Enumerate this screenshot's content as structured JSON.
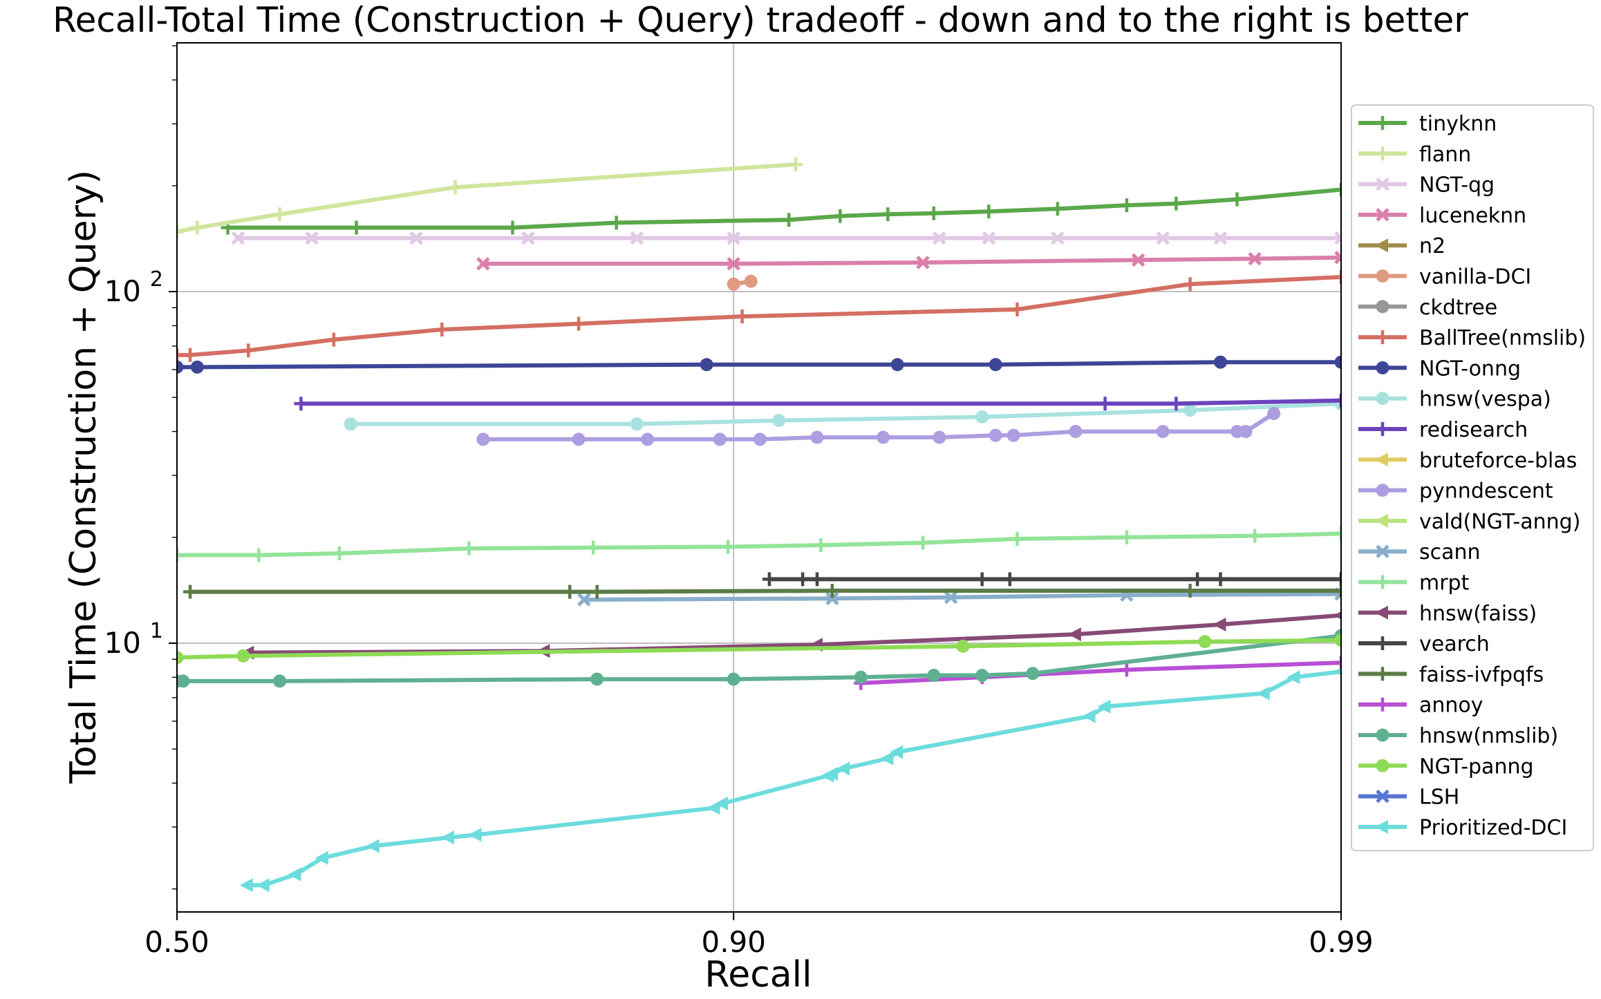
{
  "chart_data": {
    "type": "line",
    "title": "Recall-Total Time (Construction + Query) tradeoff - down and to the right is better",
    "xlabel": "Recall",
    "ylabel": "Total Time (Construction + Query)",
    "xscale": "logit",
    "yscale": "log",
    "xlim": [
      0.5,
      0.99
    ],
    "ylim": [
      1.72,
      510
    ],
    "xticks": [
      {
        "value": 0.5,
        "label": "0.50"
      },
      {
        "value": 0.9,
        "label": "0.90"
      },
      {
        "value": 0.99,
        "label": "0.99"
      }
    ],
    "yticks": [
      {
        "value": 10,
        "label": "10",
        "exp": "1"
      },
      {
        "value": 100,
        "label": "10",
        "exp": "2"
      }
    ],
    "grid": true,
    "legend_position": "right",
    "series": [
      {
        "name": "tinyknn",
        "color": "#5ba84a",
        "marker": "plus",
        "x": [
          0.55,
          0.67,
          0.79,
          0.85,
          0.918,
          0.932,
          0.943,
          0.952,
          0.961,
          0.97,
          0.977,
          0.981,
          0.985,
          0.99
        ],
        "y": [
          152,
          152,
          152,
          157,
          160,
          164,
          166,
          167,
          169,
          172,
          176,
          178,
          183,
          195
        ]
      },
      {
        "name": "flann",
        "color": "#d1e49c",
        "marker": "plus",
        "x": [
          0.5,
          0.52,
          0.6,
          0.75,
          0.92
        ],
        "y": [
          148,
          152,
          166,
          198,
          230
        ]
      },
      {
        "name": "NGT-qg",
        "color": "#e1c8e5",
        "marker": "x",
        "x": [
          0.56,
          0.63,
          0.72,
          0.8,
          0.86,
          0.9,
          0.953,
          0.961,
          0.97,
          0.98,
          0.984,
          0.99
        ],
        "y": [
          142,
          142,
          142,
          142,
          142,
          142,
          142,
          142,
          142,
          142,
          142,
          142
        ]
      },
      {
        "name": "luceneknn",
        "color": "#da7faa",
        "marker": "x",
        "x": [
          0.77,
          0.9,
          0.95,
          0.978,
          0.986,
          0.99
        ],
        "y": [
          120,
          120,
          121,
          123,
          124,
          125
        ]
      },
      {
        "name": "n2",
        "color": "#9e8e4a",
        "marker": "triangle-left",
        "x": [],
        "y": []
      },
      {
        "name": "vanilla-DCI",
        "color": "#e09a80",
        "marker": "circle",
        "x": [
          0.9,
          0.906
        ],
        "y": [
          105,
          107
        ]
      },
      {
        "name": "ckdtree",
        "color": "#979797",
        "marker": "circle",
        "x": [],
        "y": []
      },
      {
        "name": "BallTree(nmslib)",
        "color": "#d46f63",
        "marker": "plus",
        "x": [
          0.5,
          0.513,
          0.57,
          0.65,
          0.74,
          0.83,
          0.903,
          0.965,
          0.982,
          0.99
        ],
        "y": [
          66,
          66,
          68,
          73,
          78,
          81,
          85,
          89,
          105,
          110
        ]
      },
      {
        "name": "NGT-onng",
        "color": "#3c4596",
        "marker": "circle",
        "x": [
          0.5,
          0.52,
          0.89,
          0.945,
          0.962,
          0.984,
          0.99
        ],
        "y": [
          61,
          61,
          62,
          62,
          62,
          63,
          63
        ]
      },
      {
        "name": "hnsw(vespa)",
        "color": "#a8e2df",
        "marker": "circle",
        "x": [
          0.665,
          0.86,
          0.915,
          0.96,
          0.982,
          0.99
        ],
        "y": [
          42,
          42,
          43,
          44,
          46,
          48
        ]
      },
      {
        "name": "redisearch",
        "color": "#6c43bd",
        "marker": "plus",
        "x": [
          0.62,
          0.975,
          0.981,
          0.99
        ],
        "y": [
          48,
          48,
          48,
          49
        ]
      },
      {
        "name": "bruteforce-blas",
        "color": "#e0cb61",
        "marker": "triangle-left",
        "x": [],
        "y": []
      },
      {
        "name": "pynndescent",
        "color": "#ad9ee1",
        "marker": "circle",
        "x": [
          0.77,
          0.83,
          0.865,
          0.895,
          0.909,
          0.926,
          0.942,
          0.953,
          0.962,
          0.9645,
          0.972,
          0.98,
          0.985,
          0.9855,
          0.987
        ],
        "y": [
          38,
          38,
          38,
          38,
          38,
          38.5,
          38.5,
          38.5,
          39,
          39,
          40,
          40,
          40,
          40,
          45
        ]
      },
      {
        "name": "vald(NGT-anng)",
        "color": "#bce380",
        "marker": "triangle-left",
        "x": [],
        "y": []
      },
      {
        "name": "scann",
        "color": "#89aecb",
        "marker": "x",
        "x": [
          0.833,
          0.93,
          0.955,
          0.977,
          0.99
        ],
        "y": [
          13.3,
          13.4,
          13.5,
          13.7,
          13.8
        ]
      },
      {
        "name": "mrpt",
        "color": "#93e49a",
        "marker": "plus",
        "x": [
          0.5,
          0.58,
          0.655,
          0.76,
          0.838,
          0.898,
          0.927,
          0.95,
          0.965,
          0.977,
          0.986,
          0.99
        ],
        "y": [
          17.8,
          17.8,
          18,
          18.6,
          18.7,
          18.8,
          19,
          19.3,
          19.8,
          20,
          20.2,
          20.5
        ]
      },
      {
        "name": "hnsw(faiss)",
        "color": "#874a76",
        "marker": "triangle-left",
        "x": [
          0.57,
          0.81,
          0.926,
          0.972,
          0.984,
          0.99
        ],
        "y": [
          9.4,
          9.5,
          9.9,
          10.6,
          11.3,
          12
        ]
      },
      {
        "name": "vearch",
        "color": "#464646",
        "marker": "plus",
        "x": [
          0.912,
          0.922,
          0.926,
          0.96,
          0.964,
          0.9825,
          0.984,
          0.99
        ],
        "y": [
          15.2,
          15.2,
          15.2,
          15.2,
          15.2,
          15.2,
          15.2,
          15.2
        ]
      },
      {
        "name": "faiss-ivfpqfs",
        "color": "#5b7b47",
        "marker": "plus",
        "x": [
          0.513,
          0.825,
          0.84,
          0.93,
          0.982,
          0.99
        ],
        "y": [
          14,
          14,
          14,
          14.1,
          14.1,
          14.1
        ]
      },
      {
        "name": "annoy",
        "color": "#b84fd4",
        "marker": "plus",
        "x": [
          0.937,
          0.96,
          0.977,
          0.99
        ],
        "y": [
          7.7,
          8,
          8.4,
          8.8
        ]
      },
      {
        "name": "hnsw(nmslib)",
        "color": "#5fb091",
        "marker": "circle",
        "x": [
          0.5,
          0.506,
          0.6,
          0.84,
          0.9,
          0.937,
          0.952,
          0.96,
          0.967,
          0.99
        ],
        "y": [
          7.8,
          7.8,
          7.8,
          7.9,
          7.9,
          8,
          8.1,
          8.1,
          8.2,
          10.5
        ]
      },
      {
        "name": "NGT-panng",
        "color": "#8edb55",
        "marker": "circle",
        "x": [
          0.5,
          0.565,
          0.957,
          0.983,
          0.99
        ],
        "y": [
          9.1,
          9.2,
          9.8,
          10.1,
          10.2
        ]
      },
      {
        "name": "LSH",
        "color": "#5877d2",
        "marker": "x",
        "x": [],
        "y": []
      },
      {
        "name": "Prioritized-DCI",
        "color": "#6cdcdc",
        "marker": "triangle-left",
        "x": [
          0.569,
          0.585,
          0.615,
          0.64,
          0.685,
          0.745,
          0.765,
          0.893,
          0.896,
          0.929,
          0.93,
          0.933,
          0.943,
          0.945,
          0.9735,
          0.975,
          0.9865,
          0.988,
          0.99
        ],
        "y": [
          2.05,
          2.05,
          2.2,
          2.45,
          2.65,
          2.8,
          2.85,
          3.4,
          3.5,
          4.2,
          4.25,
          4.4,
          4.7,
          4.9,
          6.2,
          6.6,
          7.2,
          8,
          8.3
        ]
      }
    ]
  }
}
